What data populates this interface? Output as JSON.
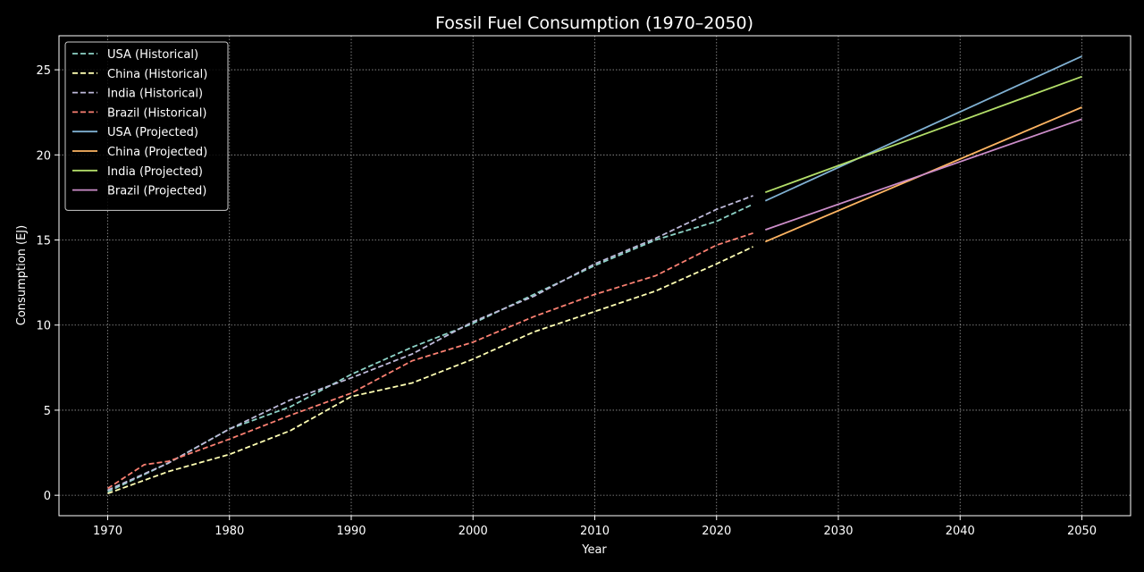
{
  "chart_data": {
    "type": "line",
    "title": "Fossil Fuel Consumption (1970–2050)",
    "xlabel": "Year",
    "ylabel": "Consumption (EJ)",
    "xlim": [
      1966,
      2054
    ],
    "ylim": [
      -1.2,
      27.0
    ],
    "xticks": [
      1970,
      1980,
      1990,
      2000,
      2010,
      2020,
      2030,
      2040,
      2050
    ],
    "yticks": [
      0,
      5,
      10,
      15,
      20,
      25
    ],
    "grid": true,
    "legend_position": "top-left",
    "series": [
      {
        "name": "USA (Historical)",
        "color": "#8dd3c7",
        "style": "dashed",
        "x": [
          1970,
          1975,
          1980,
          1985,
          1990,
          1995,
          2000,
          2005,
          2010,
          2015,
          2020,
          2023
        ],
        "y": [
          0.2,
          1.9,
          3.9,
          5.2,
          7.1,
          8.7,
          10.1,
          11.8,
          13.5,
          15.0,
          16.1,
          17.1
        ]
      },
      {
        "name": "China (Historical)",
        "color": "#ffffb3",
        "style": "dashed",
        "x": [
          1970,
          1975,
          1980,
          1985,
          1990,
          1995,
          2000,
          2005,
          2010,
          2015,
          2020,
          2023
        ],
        "y": [
          0.1,
          1.4,
          2.4,
          3.8,
          5.8,
          6.6,
          8.0,
          9.6,
          10.8,
          12.0,
          13.6,
          14.6
        ]
      },
      {
        "name": "India (Historical)",
        "color": "#bebada",
        "style": "dashed",
        "x": [
          1970,
          1975,
          1980,
          1985,
          1990,
          1995,
          2000,
          2005,
          2010,
          2015,
          2020,
          2023
        ],
        "y": [
          0.3,
          1.9,
          3.9,
          5.6,
          6.9,
          8.3,
          10.2,
          11.7,
          13.6,
          15.1,
          16.8,
          17.6
        ]
      },
      {
        "name": "Brazil (Historical)",
        "color": "#fb8072",
        "style": "dashed",
        "x": [
          1970,
          1973,
          1975,
          1980,
          1985,
          1990,
          1995,
          2000,
          2005,
          2010,
          2015,
          2020,
          2023
        ],
        "y": [
          0.4,
          1.8,
          2.0,
          3.3,
          4.7,
          6.0,
          7.9,
          9.0,
          10.5,
          11.8,
          12.9,
          14.7,
          15.4
        ]
      },
      {
        "name": "USA (Projected)",
        "color": "#80b1d3",
        "style": "solid",
        "x": [
          2024,
          2050
        ],
        "y": [
          17.3,
          25.8
        ]
      },
      {
        "name": "China (Projected)",
        "color": "#fdb462",
        "style": "solid",
        "x": [
          2024,
          2050
        ],
        "y": [
          14.9,
          22.8
        ]
      },
      {
        "name": "India (Projected)",
        "color": "#b3de69",
        "style": "solid",
        "x": [
          2024,
          2050
        ],
        "y": [
          17.8,
          24.6
        ]
      },
      {
        "name": "Brazil (Projected)",
        "color": "#cc8dc9",
        "style": "solid",
        "x": [
          2024,
          2050
        ],
        "y": [
          15.6,
          22.1
        ]
      }
    ]
  }
}
